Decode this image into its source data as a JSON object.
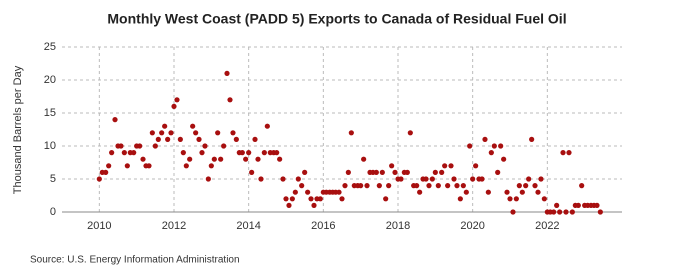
{
  "chart_data": {
    "type": "scatter",
    "title": "Monthly West Coast (PADD 5) Exports to Canada of Residual Fuel Oil",
    "y_label": "Thousand Barrels per Day",
    "source": "Source: U.S. Energy Information Administration",
    "color": "#a80f0f",
    "grid": true,
    "xlim": [
      2009,
      2024
    ],
    "xticks": [
      2010,
      2012,
      2014,
      2016,
      2018,
      2020,
      2022
    ],
    "ylim": [
      0,
      25
    ],
    "yticks": [
      0,
      5,
      10,
      15,
      20,
      25
    ],
    "x": [
      2010.0,
      2010.08,
      2010.17,
      2010.25,
      2010.33,
      2010.42,
      2010.5,
      2010.58,
      2010.67,
      2010.75,
      2010.83,
      2010.92,
      2011.0,
      2011.08,
      2011.17,
      2011.25,
      2011.33,
      2011.42,
      2011.5,
      2011.58,
      2011.67,
      2011.75,
      2011.83,
      2011.92,
      2012.0,
      2012.08,
      2012.17,
      2012.25,
      2012.33,
      2012.42,
      2012.5,
      2012.58,
      2012.67,
      2012.75,
      2012.83,
      2012.92,
      2013.0,
      2013.08,
      2013.17,
      2013.25,
      2013.33,
      2013.42,
      2013.5,
      2013.58,
      2013.67,
      2013.75,
      2013.83,
      2013.92,
      2014.0,
      2014.08,
      2014.17,
      2014.25,
      2014.33,
      2014.42,
      2014.5,
      2014.58,
      2014.67,
      2014.75,
      2014.83,
      2014.92,
      2015.0,
      2015.08,
      2015.17,
      2015.25,
      2015.33,
      2015.42,
      2015.5,
      2015.58,
      2015.67,
      2015.75,
      2015.83,
      2015.92,
      2016.0,
      2016.08,
      2016.17,
      2016.25,
      2016.33,
      2016.42,
      2016.5,
      2016.58,
      2016.67,
      2016.75,
      2016.83,
      2016.92,
      2017.0,
      2017.08,
      2017.17,
      2017.25,
      2017.33,
      2017.42,
      2017.5,
      2017.58,
      2017.67,
      2017.75,
      2017.83,
      2017.92,
      2018.0,
      2018.08,
      2018.17,
      2018.25,
      2018.33,
      2018.42,
      2018.5,
      2018.58,
      2018.67,
      2018.75,
      2018.83,
      2018.92,
      2019.0,
      2019.08,
      2019.17,
      2019.25,
      2019.33,
      2019.42,
      2019.5,
      2019.58,
      2019.67,
      2019.75,
      2019.83,
      2019.92,
      2020.0,
      2020.08,
      2020.17,
      2020.25,
      2020.33,
      2020.42,
      2020.5,
      2020.58,
      2020.67,
      2020.75,
      2020.83,
      2020.92,
      2021.0,
      2021.08,
      2021.17,
      2021.25,
      2021.33,
      2021.42,
      2021.5,
      2021.58,
      2021.67,
      2021.75,
      2021.83,
      2021.92,
      2022.0,
      2022.08,
      2022.17,
      2022.25,
      2022.33,
      2022.42,
      2022.5,
      2022.58,
      2022.67,
      2022.75,
      2022.83,
      2022.92,
      2023.0,
      2023.08,
      2023.17,
      2023.25,
      2023.33,
      2023.42
    ],
    "values": [
      5,
      6,
      6,
      7,
      9,
      14,
      10,
      10,
      9,
      7,
      9,
      9,
      10,
      10,
      8,
      7,
      7,
      12,
      10,
      11,
      12,
      13,
      11,
      12,
      16,
      17,
      11,
      9,
      7,
      8,
      13,
      12,
      11,
      9,
      10,
      5,
      7,
      8,
      12,
      8,
      10,
      21,
      17,
      12,
      11,
      9,
      9,
      8,
      9,
      6,
      11,
      8,
      5,
      9,
      13,
      9,
      9,
      9,
      8,
      5,
      2,
      1,
      2,
      3,
      5,
      4,
      6,
      3,
      2,
      1,
      2,
      2,
      3,
      3,
      3,
      3,
      3,
      3,
      2,
      4,
      6,
      12,
      4,
      4,
      4,
      8,
      4,
      6,
      6,
      6,
      4,
      6,
      2,
      4,
      7,
      6,
      5,
      5,
      6,
      6,
      12,
      4,
      4,
      3,
      5,
      5,
      4,
      5,
      6,
      4,
      6,
      7,
      4,
      7,
      5,
      4,
      2,
      4,
      3,
      10,
      5,
      7,
      5,
      5,
      11,
      3,
      9,
      10,
      6,
      10,
      8,
      3,
      2,
      0,
      2,
      4,
      3,
      4,
      5,
      11,
      4,
      3,
      5,
      2,
      0,
      0,
      0,
      1,
      0,
      9,
      0,
      9,
      0,
      1,
      1,
      4,
      1,
      1,
      1,
      1,
      1,
      0
    ]
  }
}
